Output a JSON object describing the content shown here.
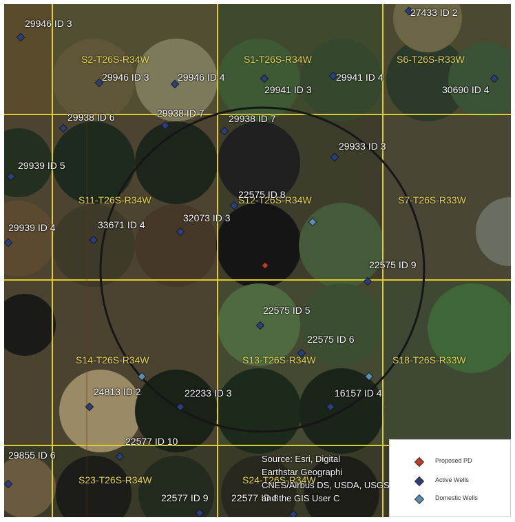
{
  "map": {
    "colors": {
      "section_line": "#e2cc2c",
      "radius_circle": "#161616",
      "proposed_pd": "#c0392b",
      "active_well": "#2b3f7a",
      "domestic_well": "#5b8db0"
    },
    "sections": [
      "S2-T26S-R34W",
      "S1-T26S-R34W",
      "S6-T26S-R33W",
      "S11-T26S-R34W",
      "S12-T26S-R34W",
      "S7-T26S-R33W",
      "S14-T26S-R34W",
      "S13-T26S-R34W",
      "S18-T26S-R33W",
      "S23-T26S-R34W",
      "S24-T26S-R34W"
    ],
    "wells": [
      {
        "label": "29946 ID 3",
        "type": "active"
      },
      {
        "label": "27433 ID 2",
        "type": "active"
      },
      {
        "label": "29946 ID 3",
        "type": "active"
      },
      {
        "label": "29946 ID 4",
        "type": "active"
      },
      {
        "label": "29941 ID 3",
        "type": "active"
      },
      {
        "label": "29941 ID 4",
        "type": "active"
      },
      {
        "label": "30690 ID 4",
        "type": "active"
      },
      {
        "label": "29938 ID 6",
        "type": "active"
      },
      {
        "label": "29938 ID 7",
        "type": "active"
      },
      {
        "label": "29938 ID 7",
        "type": "active"
      },
      {
        "label": "29933 ID 3",
        "type": "active"
      },
      {
        "label": "29939 ID 5",
        "type": "active"
      },
      {
        "label": "22575 ID 8",
        "type": "active"
      },
      {
        "label": "29939 ID 4",
        "type": "active"
      },
      {
        "label": "33671 ID 4",
        "type": "active"
      },
      {
        "label": "32073 ID 3",
        "type": "active"
      },
      {
        "label": "22575 ID 9",
        "type": "active"
      },
      {
        "label": "22575 ID 5",
        "type": "active"
      },
      {
        "label": "22575 ID 6",
        "type": "active"
      },
      {
        "label": "24813 ID 2",
        "type": "active"
      },
      {
        "label": "22233 ID 3",
        "type": "active"
      },
      {
        "label": "16157 ID 4",
        "type": "active"
      },
      {
        "label": "22577 ID 10",
        "type": "active"
      },
      {
        "label": "29855 ID 6",
        "type": "active"
      },
      {
        "label": "22577 ID 9",
        "type": "active"
      },
      {
        "label": "22577 ID 8",
        "type": "active"
      },
      {
        "label": "",
        "type": "domestic"
      },
      {
        "label": "",
        "type": "domestic"
      },
      {
        "label": "",
        "type": "domestic"
      }
    ],
    "proposed_pd": {
      "label": ""
    },
    "credit_lines": [
      "Source: Esri, Digital",
      "Earthstar Geographi",
      "CNES/Airbus DS, USDA, USGS, A",
      "and the GIS User C"
    ]
  },
  "legend": {
    "items": [
      {
        "label": "Proposed PD",
        "symbol": "proposed-pd"
      },
      {
        "label": "Active Wells",
        "symbol": "active-well"
      },
      {
        "label": "Domestic Wells",
        "symbol": "domestic-well"
      }
    ]
  }
}
